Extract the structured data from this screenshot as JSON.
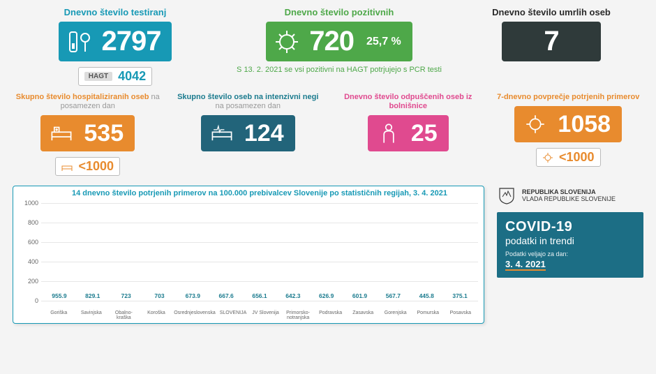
{
  "colors": {
    "teal": "#1799b5",
    "green": "#4ea849",
    "dark": "#2f3a3a",
    "orange": "#e88b2e",
    "tealdark": "#22647a",
    "pink": "#e04a8f",
    "chart_bar": "#2a8ca5",
    "grid": "#e6e6e6"
  },
  "row1": {
    "tests": {
      "title": "Dnevno število testiranj",
      "value": "2797",
      "hagt_label": "HAGT",
      "hagt_value": "4042"
    },
    "positive": {
      "title": "Dnevno število pozitivnih",
      "value": "720",
      "pct": "25,7 %",
      "note": "S 13. 2. 2021 se vsi pozitivni na HAGT potrjujejo s PCR testi"
    },
    "deaths": {
      "title": "Dnevno število umrlih oseb",
      "value": "7"
    }
  },
  "row2": {
    "hosp": {
      "title_main": "Skupno število hospitaliziranih oseb",
      "title_muted": " na posamezen dan",
      "value": "535",
      "sub_value": "<1000"
    },
    "icu": {
      "title_main": "Skupno število oseb na intenzivni negi",
      "title_muted": " na posamezen dan",
      "value": "124"
    },
    "discharged": {
      "title_main": "Dnevno število odpuščenih oseb iz bolnišnice",
      "value": "25"
    },
    "avg7": {
      "title_main": "7-dnevno povprečje potrjenih primerov",
      "value": "1058",
      "sub_value": "<1000"
    }
  },
  "chart": {
    "title_bold": "14 dnevno število potrjenih primerov",
    "title_rest": " na 100.000 prebivalcev Slovenije po statističnih regijah, 3. 4. 2021",
    "ylim": [
      0,
      1000
    ],
    "ytick_step": 200,
    "bar_color": "#2a8ca5",
    "categories": [
      "Goriška",
      "Savinjska",
      "Obalno-kraška",
      "Koroška",
      "Osrednjeslovenska",
      "SLOVENIJA",
      "JV Slovenija",
      "Primorsko-notranjska",
      "Podravska",
      "Zasavska",
      "Gorenjska",
      "Pomurska",
      "Posavska"
    ],
    "values": [
      955.9,
      829.1,
      723,
      703,
      673.9,
      667.6,
      656.1,
      642.3,
      626.9,
      601.9,
      567.7,
      445.8,
      375.1
    ]
  },
  "gov": {
    "line1": "REPUBLIKA SLOVENIJA",
    "line2": "VLADA REPUBLIKE SLOVENIJE"
  },
  "panel": {
    "h1": "COVID-19",
    "h2": "podatki in trendi",
    "sm": "Podatki veljajo za dan:",
    "date": "3. 4. 2021"
  }
}
